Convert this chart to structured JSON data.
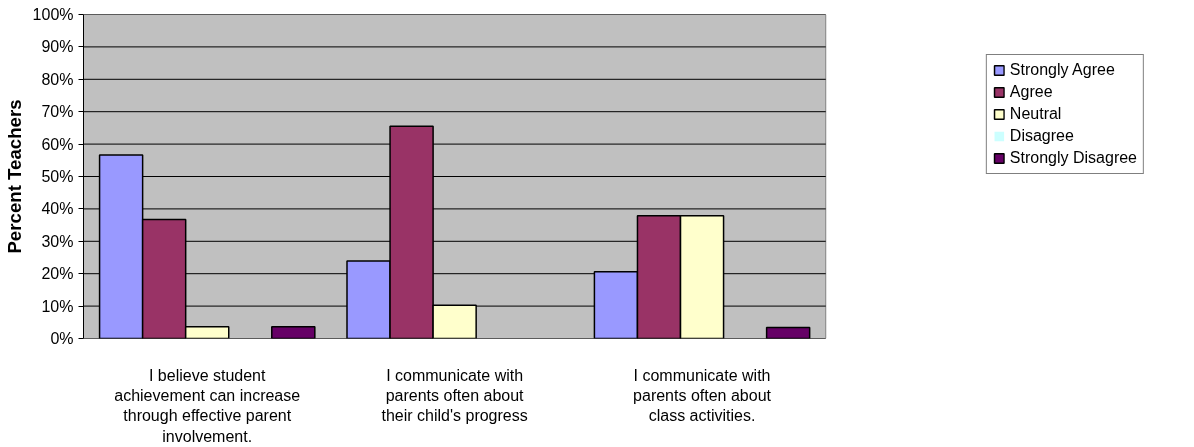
{
  "chart_data": {
    "type": "bar",
    "ylabel": "Percent Teachers",
    "categories": [
      "I believe student achievement can increase through effective parent involvement.",
      "I communicate with parents often about their child's progress",
      "I communicate with parents often about class activities."
    ],
    "series": [
      {
        "name": "Strongly Agree",
        "color": "#9999ff",
        "values": [
          56.6,
          23.9,
          20.6
        ]
      },
      {
        "name": "Agree",
        "color": "#993366",
        "values": [
          36.7,
          65.5,
          37.9
        ]
      },
      {
        "name": "Neutral",
        "color": "#ffffcc",
        "values": [
          3.6,
          10.3,
          37.9
        ]
      },
      {
        "name": "Disagree",
        "color": "#ccffff",
        "values": [
          0,
          0,
          0
        ]
      },
      {
        "name": "Strongly Disagree",
        "color": "#660066",
        "values": [
          3.6,
          0,
          3.4
        ]
      }
    ],
    "ylim": [
      0,
      100
    ],
    "yticks": [
      {
        "value": 0,
        "label": "0%"
      },
      {
        "value": 10,
        "label": "10%"
      },
      {
        "value": 20,
        "label": "20%"
      },
      {
        "value": 30,
        "label": "30%"
      },
      {
        "value": 40,
        "label": "40%"
      },
      {
        "value": 50,
        "label": "50%"
      },
      {
        "value": 60,
        "label": "60%"
      },
      {
        "value": 70,
        "label": "70%"
      },
      {
        "value": 80,
        "label": "80%"
      },
      {
        "value": 90,
        "label": "90%"
      },
      {
        "value": 100,
        "label": "100%"
      }
    ],
    "grid": "y",
    "legend": "right"
  }
}
